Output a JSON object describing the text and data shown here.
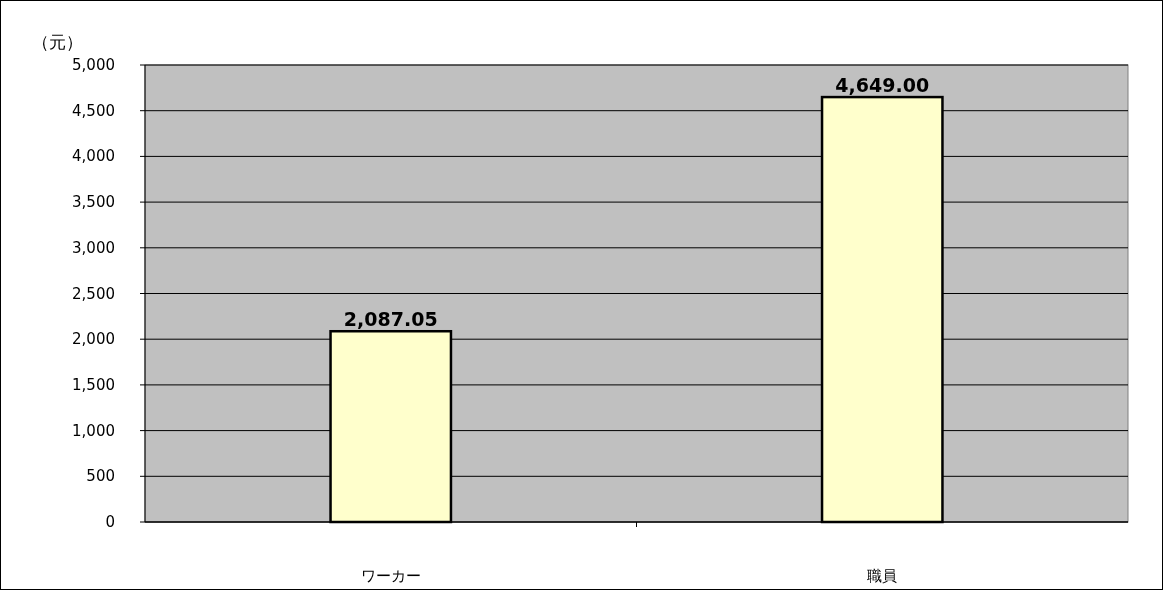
{
  "chart_data": {
    "type": "bar",
    "ylabel": "（元）",
    "categories": [
      "ワーカー",
      "職員"
    ],
    "values": [
      2087.05,
      4649.0
    ],
    "value_labels": [
      "2,087.05",
      "4,649.00"
    ],
    "color": "#ffffcc",
    "ylim": [
      0,
      5000
    ],
    "yticks": [
      {
        "value": 0,
        "label": "0"
      },
      {
        "value": 500,
        "label": "500"
      },
      {
        "value": 1000,
        "label": "1,000"
      },
      {
        "value": 1500,
        "label": "1,500"
      },
      {
        "value": 2000,
        "label": "2,000"
      },
      {
        "value": 2500,
        "label": "2,500"
      },
      {
        "value": 3000,
        "label": "3,000"
      },
      {
        "value": 3500,
        "label": "3,500"
      },
      {
        "value": 4000,
        "label": "4,000"
      },
      {
        "value": 4500,
        "label": "4,500"
      },
      {
        "value": 5000,
        "label": "5,000"
      }
    ],
    "grid": "y"
  }
}
